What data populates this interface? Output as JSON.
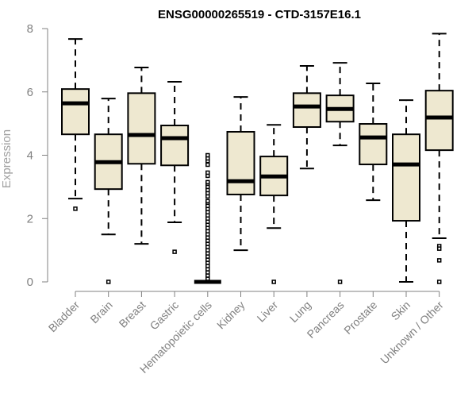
{
  "chart_data": {
    "type": "boxplot",
    "title": "ENSG00000265519 - CTD-3157E16.1",
    "xlabel": "",
    "ylabel": "Expression",
    "ylim": [
      0,
      8
    ],
    "yticks": [
      0,
      2,
      4,
      6,
      8
    ],
    "grid": false,
    "legend": "none",
    "box_fill": "#EEE8D0",
    "box_stroke": "#000000",
    "axis_color": "#808080",
    "categories": [
      "Bladder",
      "Brain",
      "Breast",
      "Gastric",
      "Hematopoietic cells",
      "Kidney",
      "Liver",
      "Lung",
      "Pancreas",
      "Prostate",
      "Skin",
      "Unknown / Other"
    ],
    "boxes": [
      {
        "name": "Bladder",
        "whisker_low": 2.63,
        "q1": 4.66,
        "median": 5.64,
        "q3": 6.09,
        "whisker_high": 7.67,
        "outliers": [
          2.31
        ]
      },
      {
        "name": "Brain",
        "whisker_low": 1.5,
        "q1": 2.93,
        "median": 3.78,
        "q3": 4.66,
        "whisker_high": 5.79,
        "outliers": [
          0
        ]
      },
      {
        "name": "Breast",
        "whisker_low": 1.2,
        "q1": 3.73,
        "median": 4.64,
        "q3": 5.96,
        "whisker_high": 6.77,
        "outliers": []
      },
      {
        "name": "Gastric",
        "whisker_low": 1.88,
        "q1": 3.68,
        "median": 4.54,
        "q3": 4.94,
        "whisker_high": 6.32,
        "outliers": [
          0.95
        ]
      },
      {
        "name": "Hematopoietic cells",
        "whisker_low": 0,
        "q1": 0,
        "median": 0,
        "q3": 0,
        "whisker_high": 0,
        "outliers": [
          0.1,
          0.2,
          0.3,
          0.4,
          0.5,
          0.6,
          0.7,
          0.8,
          0.9,
          1.0,
          1.1,
          1.2,
          1.3,
          1.4,
          1.5,
          1.6,
          1.7,
          1.8,
          1.9,
          2.0,
          2.1,
          2.2,
          2.3,
          2.4,
          2.5,
          2.55,
          2.7,
          2.8,
          2.9,
          3.0,
          3.1,
          3.15,
          3.35,
          3.45,
          3.7,
          3.82,
          3.9,
          4.0
        ]
      },
      {
        "name": "Kidney",
        "whisker_low": 1.0,
        "q1": 2.76,
        "median": 3.18,
        "q3": 4.74,
        "whisker_high": 5.84,
        "outliers": []
      },
      {
        "name": "Liver",
        "whisker_low": 1.7,
        "q1": 2.73,
        "median": 3.33,
        "q3": 3.96,
        "whisker_high": 4.96,
        "outliers": [
          0
        ]
      },
      {
        "name": "Lung",
        "whisker_low": 3.58,
        "q1": 4.89,
        "median": 5.54,
        "q3": 5.96,
        "whisker_high": 6.82,
        "outliers": []
      },
      {
        "name": "Pancreas",
        "whisker_low": 4.31,
        "q1": 5.06,
        "median": 5.46,
        "q3": 5.89,
        "whisker_high": 6.92,
        "outliers": [
          0
        ]
      },
      {
        "name": "Prostate",
        "whisker_low": 2.58,
        "q1": 3.71,
        "median": 4.56,
        "q3": 4.99,
        "whisker_high": 6.27,
        "outliers": []
      },
      {
        "name": "Skin",
        "whisker_low": 0,
        "q1": 1.93,
        "median": 3.71,
        "q3": 4.66,
        "whisker_high": 5.74,
        "outliers": []
      },
      {
        "name": "Unknown / Other",
        "whisker_low": 1.38,
        "q1": 4.16,
        "median": 5.19,
        "q3": 6.04,
        "whisker_high": 7.84,
        "outliers": [
          1.13,
          1.05,
          0.68,
          0
        ]
      }
    ]
  }
}
